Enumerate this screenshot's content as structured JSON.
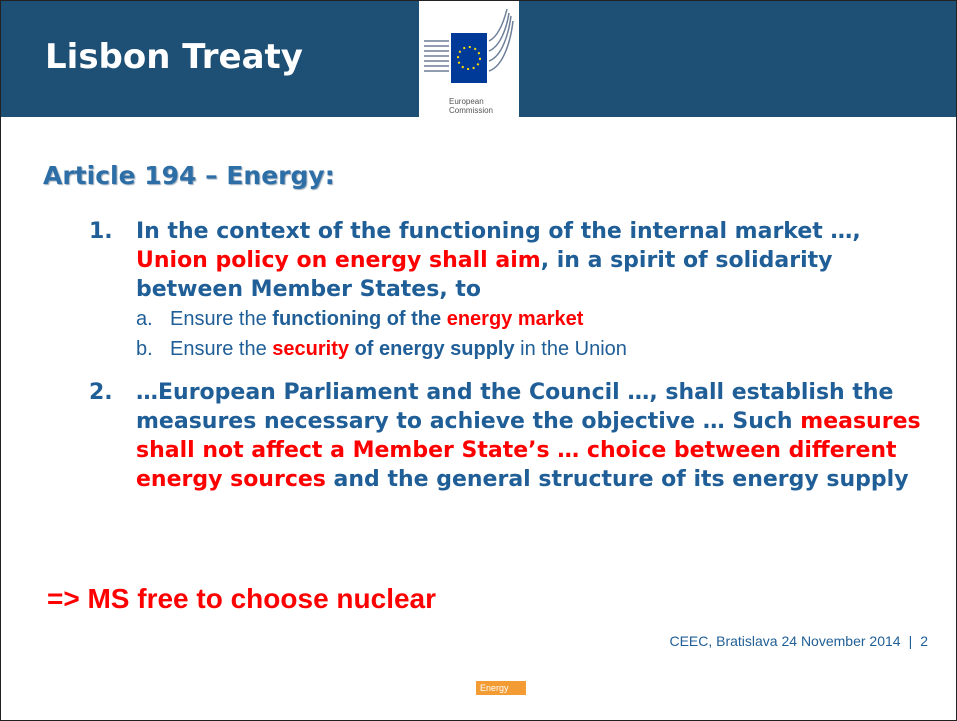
{
  "header": {
    "title": "Lisbon Treaty",
    "logo_lines": [
      "European",
      "Commission"
    ]
  },
  "heading": "Article 194 – Energy:",
  "items": [
    {
      "marker": "1.",
      "segments": [
        {
          "text": "In the context of the functioning of the internal market …, ",
          "style": "main"
        },
        {
          "text": "Union policy on energy shall aim",
          "style": "red"
        },
        {
          "text": ", in a spirit of solidarity between Member States, to",
          "style": "main"
        }
      ],
      "subitems": [
        {
          "marker": "a.",
          "segments": [
            {
              "text": "Ensure the ",
              "style": "plain"
            },
            {
              "text": "functioning of the ",
              "style": "bold"
            },
            {
              "text": "energy market",
              "style": "red"
            }
          ]
        },
        {
          "marker": "b.",
          "segments": [
            {
              "text": "Ensure the ",
              "style": "plain"
            },
            {
              "text": "security",
              "style": "red"
            },
            {
              "text": " of energy supply",
              "style": "bold"
            },
            {
              "text": " in the Union",
              "style": "plain"
            }
          ]
        }
      ]
    },
    {
      "marker": "2.",
      "segments": [
        {
          "text": "…European Parliament and the Council …, shall establish the measures necessary to achieve the objective … Such ",
          "style": "main"
        },
        {
          "text": "measures shall not affect a Member State’s … choice between different energy sources",
          "style": "red"
        },
        {
          "text": " and the general structure of its energy supply",
          "style": "main"
        }
      ],
      "subitems": []
    }
  ],
  "conclusion": "=> MS free to choose nuclear",
  "footer": {
    "text": "CEEC, Bratislava 24 November 2014",
    "separator": "|",
    "page": "2",
    "tag": "Energy"
  }
}
